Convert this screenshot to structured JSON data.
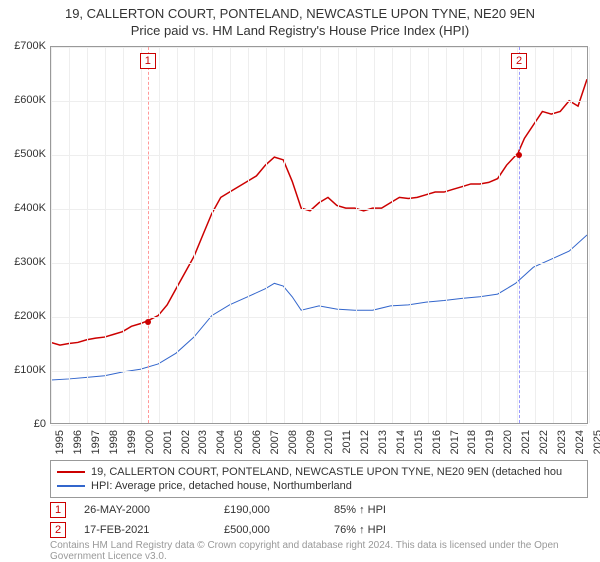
{
  "title": {
    "line1": "19, CALLERTON COURT, PONTELAND, NEWCASTLE UPON TYNE, NE20 9EN",
    "line2": "Price paid vs. HM Land Registry's House Price Index (HPI)",
    "fontsize": 13,
    "color": "#333333"
  },
  "chart": {
    "type": "line",
    "background_color": "#ffffff",
    "grid_color": "#eeeeee",
    "border_color": "#999999",
    "y": {
      "min": 0,
      "max": 700000,
      "ticks": [
        0,
        100000,
        200000,
        300000,
        400000,
        500000,
        600000,
        700000
      ],
      "labels": [
        "£0",
        "£100K",
        "£200K",
        "£300K",
        "£400K",
        "£500K",
        "£600K",
        "£700K"
      ],
      "fontsize": 11
    },
    "x": {
      "min": 1995,
      "max": 2025,
      "ticks": [
        1995,
        1996,
        1997,
        1998,
        1999,
        2000,
        2001,
        2002,
        2003,
        2004,
        2005,
        2006,
        2007,
        2008,
        2009,
        2010,
        2011,
        2012,
        2013,
        2014,
        2015,
        2016,
        2017,
        2018,
        2019,
        2020,
        2021,
        2022,
        2023,
        2024,
        2025
      ],
      "labels": [
        "1995",
        "1996",
        "1997",
        "1998",
        "1999",
        "2000",
        "2001",
        "2002",
        "2003",
        "2004",
        "2005",
        "2006",
        "2007",
        "2008",
        "2009",
        "2010",
        "2011",
        "2012",
        "2013",
        "2014",
        "2015",
        "2016",
        "2017",
        "2018",
        "2019",
        "2020",
        "2021",
        "2022",
        "2023",
        "2024",
        "2025"
      ],
      "fontsize": 11
    },
    "series": [
      {
        "name": "property",
        "label": "19, CALLERTON COURT, PONTELAND, NEWCASTLE UPON TYNE, NE20 9EN (detached hou",
        "color": "#cc0000",
        "line_width": 1.5,
        "points": [
          [
            1995.0,
            150000
          ],
          [
            1995.5,
            145000
          ],
          [
            1996.0,
            148000
          ],
          [
            1996.5,
            150000
          ],
          [
            1997.0,
            155000
          ],
          [
            1997.5,
            158000
          ],
          [
            1998.0,
            160000
          ],
          [
            1998.5,
            165000
          ],
          [
            1999.0,
            170000
          ],
          [
            1999.5,
            180000
          ],
          [
            2000.0,
            185000
          ],
          [
            2000.4,
            190000
          ],
          [
            2001.0,
            200000
          ],
          [
            2001.5,
            220000
          ],
          [
            2002.0,
            250000
          ],
          [
            2002.5,
            280000
          ],
          [
            2003.0,
            310000
          ],
          [
            2003.5,
            350000
          ],
          [
            2004.0,
            390000
          ],
          [
            2004.5,
            420000
          ],
          [
            2005.0,
            430000
          ],
          [
            2005.5,
            440000
          ],
          [
            2006.0,
            450000
          ],
          [
            2006.5,
            460000
          ],
          [
            2007.0,
            480000
          ],
          [
            2007.5,
            495000
          ],
          [
            2008.0,
            490000
          ],
          [
            2008.5,
            450000
          ],
          [
            2009.0,
            400000
          ],
          [
            2009.5,
            395000
          ],
          [
            2010.0,
            410000
          ],
          [
            2010.5,
            420000
          ],
          [
            2011.0,
            405000
          ],
          [
            2011.5,
            400000
          ],
          [
            2012.0,
            400000
          ],
          [
            2012.5,
            395000
          ],
          [
            2013.0,
            400000
          ],
          [
            2013.5,
            400000
          ],
          [
            2014.0,
            410000
          ],
          [
            2014.5,
            420000
          ],
          [
            2015.0,
            418000
          ],
          [
            2015.5,
            420000
          ],
          [
            2016.0,
            425000
          ],
          [
            2016.5,
            430000
          ],
          [
            2017.0,
            430000
          ],
          [
            2017.5,
            435000
          ],
          [
            2018.0,
            440000
          ],
          [
            2018.5,
            445000
          ],
          [
            2019.0,
            445000
          ],
          [
            2019.5,
            448000
          ],
          [
            2020.0,
            455000
          ],
          [
            2020.5,
            480000
          ],
          [
            2021.0,
            498000
          ],
          [
            2021.1,
            500000
          ],
          [
            2021.5,
            530000
          ],
          [
            2022.0,
            555000
          ],
          [
            2022.5,
            580000
          ],
          [
            2023.0,
            575000
          ],
          [
            2023.5,
            580000
          ],
          [
            2024.0,
            600000
          ],
          [
            2024.5,
            590000
          ],
          [
            2025.0,
            640000
          ]
        ]
      },
      {
        "name": "hpi",
        "label": "HPI: Average price, detached house, Northumberland",
        "color": "#3366cc",
        "line_width": 1,
        "points": [
          [
            1995.0,
            80000
          ],
          [
            1996.0,
            82000
          ],
          [
            1997.0,
            85000
          ],
          [
            1998.0,
            88000
          ],
          [
            1999.0,
            95000
          ],
          [
            2000.0,
            100000
          ],
          [
            2001.0,
            110000
          ],
          [
            2002.0,
            130000
          ],
          [
            2003.0,
            160000
          ],
          [
            2004.0,
            200000
          ],
          [
            2005.0,
            220000
          ],
          [
            2006.0,
            235000
          ],
          [
            2007.0,
            250000
          ],
          [
            2007.5,
            260000
          ],
          [
            2008.0,
            255000
          ],
          [
            2008.5,
            235000
          ],
          [
            2009.0,
            210000
          ],
          [
            2010.0,
            218000
          ],
          [
            2011.0,
            212000
          ],
          [
            2012.0,
            210000
          ],
          [
            2013.0,
            210000
          ],
          [
            2014.0,
            218000
          ],
          [
            2015.0,
            220000
          ],
          [
            2016.0,
            225000
          ],
          [
            2017.0,
            228000
          ],
          [
            2018.0,
            232000
          ],
          [
            2019.0,
            235000
          ],
          [
            2020.0,
            240000
          ],
          [
            2021.0,
            260000
          ],
          [
            2022.0,
            290000
          ],
          [
            2023.0,
            305000
          ],
          [
            2024.0,
            320000
          ],
          [
            2025.0,
            350000
          ]
        ]
      }
    ],
    "markers": [
      {
        "id": "1",
        "year": 2000.4,
        "price": 190000,
        "color": "#cc0000",
        "line_color": "#ff9999"
      },
      {
        "id": "2",
        "year": 2021.1,
        "price": 500000,
        "color": "#cc0000",
        "line_color": "#9999ff"
      }
    ]
  },
  "legend": {
    "border_color": "#999999",
    "items": [
      {
        "color": "#cc0000",
        "label": "19, CALLERTON COURT, PONTELAND, NEWCASTLE UPON TYNE, NE20 9EN (detached hou"
      },
      {
        "color": "#3366cc",
        "label": "HPI: Average price, detached house, Northumberland"
      }
    ]
  },
  "events": [
    {
      "id": "1",
      "color": "#cc0000",
      "date": "26-MAY-2000",
      "price": "£190,000",
      "pct": "85% ↑ HPI"
    },
    {
      "id": "2",
      "color": "#cc0000",
      "date": "17-FEB-2021",
      "price": "£500,000",
      "pct": "76% ↑ HPI"
    }
  ],
  "footer": {
    "text": "Contains HM Land Registry data © Crown copyright and database right 2024. This data is licensed under the Open Government Licence v3.0.",
    "color": "#999999",
    "fontsize": 10
  }
}
